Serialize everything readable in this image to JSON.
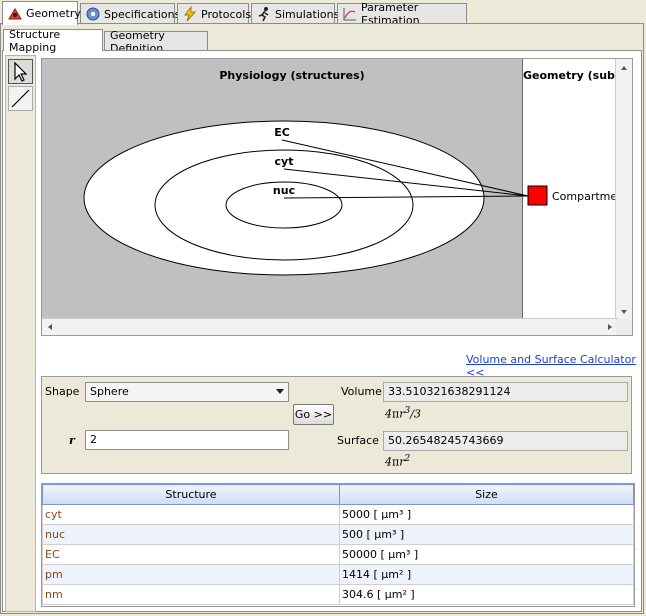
{
  "top_tabs": [
    {
      "label": "Geometry",
      "icon": "geometry-icon",
      "active": true
    },
    {
      "label": "Specifications",
      "icon": "gear-icon",
      "active": false
    },
    {
      "label": "Protocols",
      "icon": "lightning-icon",
      "active": false
    },
    {
      "label": "Simulations",
      "icon": "runner-icon",
      "active": false
    },
    {
      "label": "Parameter Estimation",
      "icon": "chart-icon",
      "active": false
    }
  ],
  "sub_tabs": [
    {
      "label": "Structure Mapping",
      "active": true
    },
    {
      "label": "Geometry Definition",
      "active": false
    }
  ],
  "diagram": {
    "physiology_title": "Physiology (structures)",
    "geometry_title": "Geometry (subdo",
    "structures": [
      "EC",
      "cyt",
      "nuc"
    ],
    "compartment_label": "Compartment",
    "compartment_color": "#ff0000"
  },
  "calculator": {
    "link_label": "Volume and Surface Calculator <<",
    "shape_label": "Shape",
    "shape_value": "Sphere",
    "go_label": "Go >>",
    "r_label": "r",
    "r_value": "2",
    "volume_label": "Volume",
    "volume_value": "33.510321638291124",
    "surface_label": "Surface",
    "surface_value": "50.26548245743669"
  },
  "table": {
    "headers": [
      "Structure",
      "Size"
    ],
    "rows": [
      {
        "structure": "cyt",
        "size": "5000 [ µm³ ]"
      },
      {
        "structure": "nuc",
        "size": "500 [ µm³ ]"
      },
      {
        "structure": "EC",
        "size": "50000 [ µm³ ]"
      },
      {
        "structure": "pm",
        "size": "1414 [ µm² ]"
      },
      {
        "structure": "nm",
        "size": "304.6 [ µm² ]"
      }
    ]
  }
}
